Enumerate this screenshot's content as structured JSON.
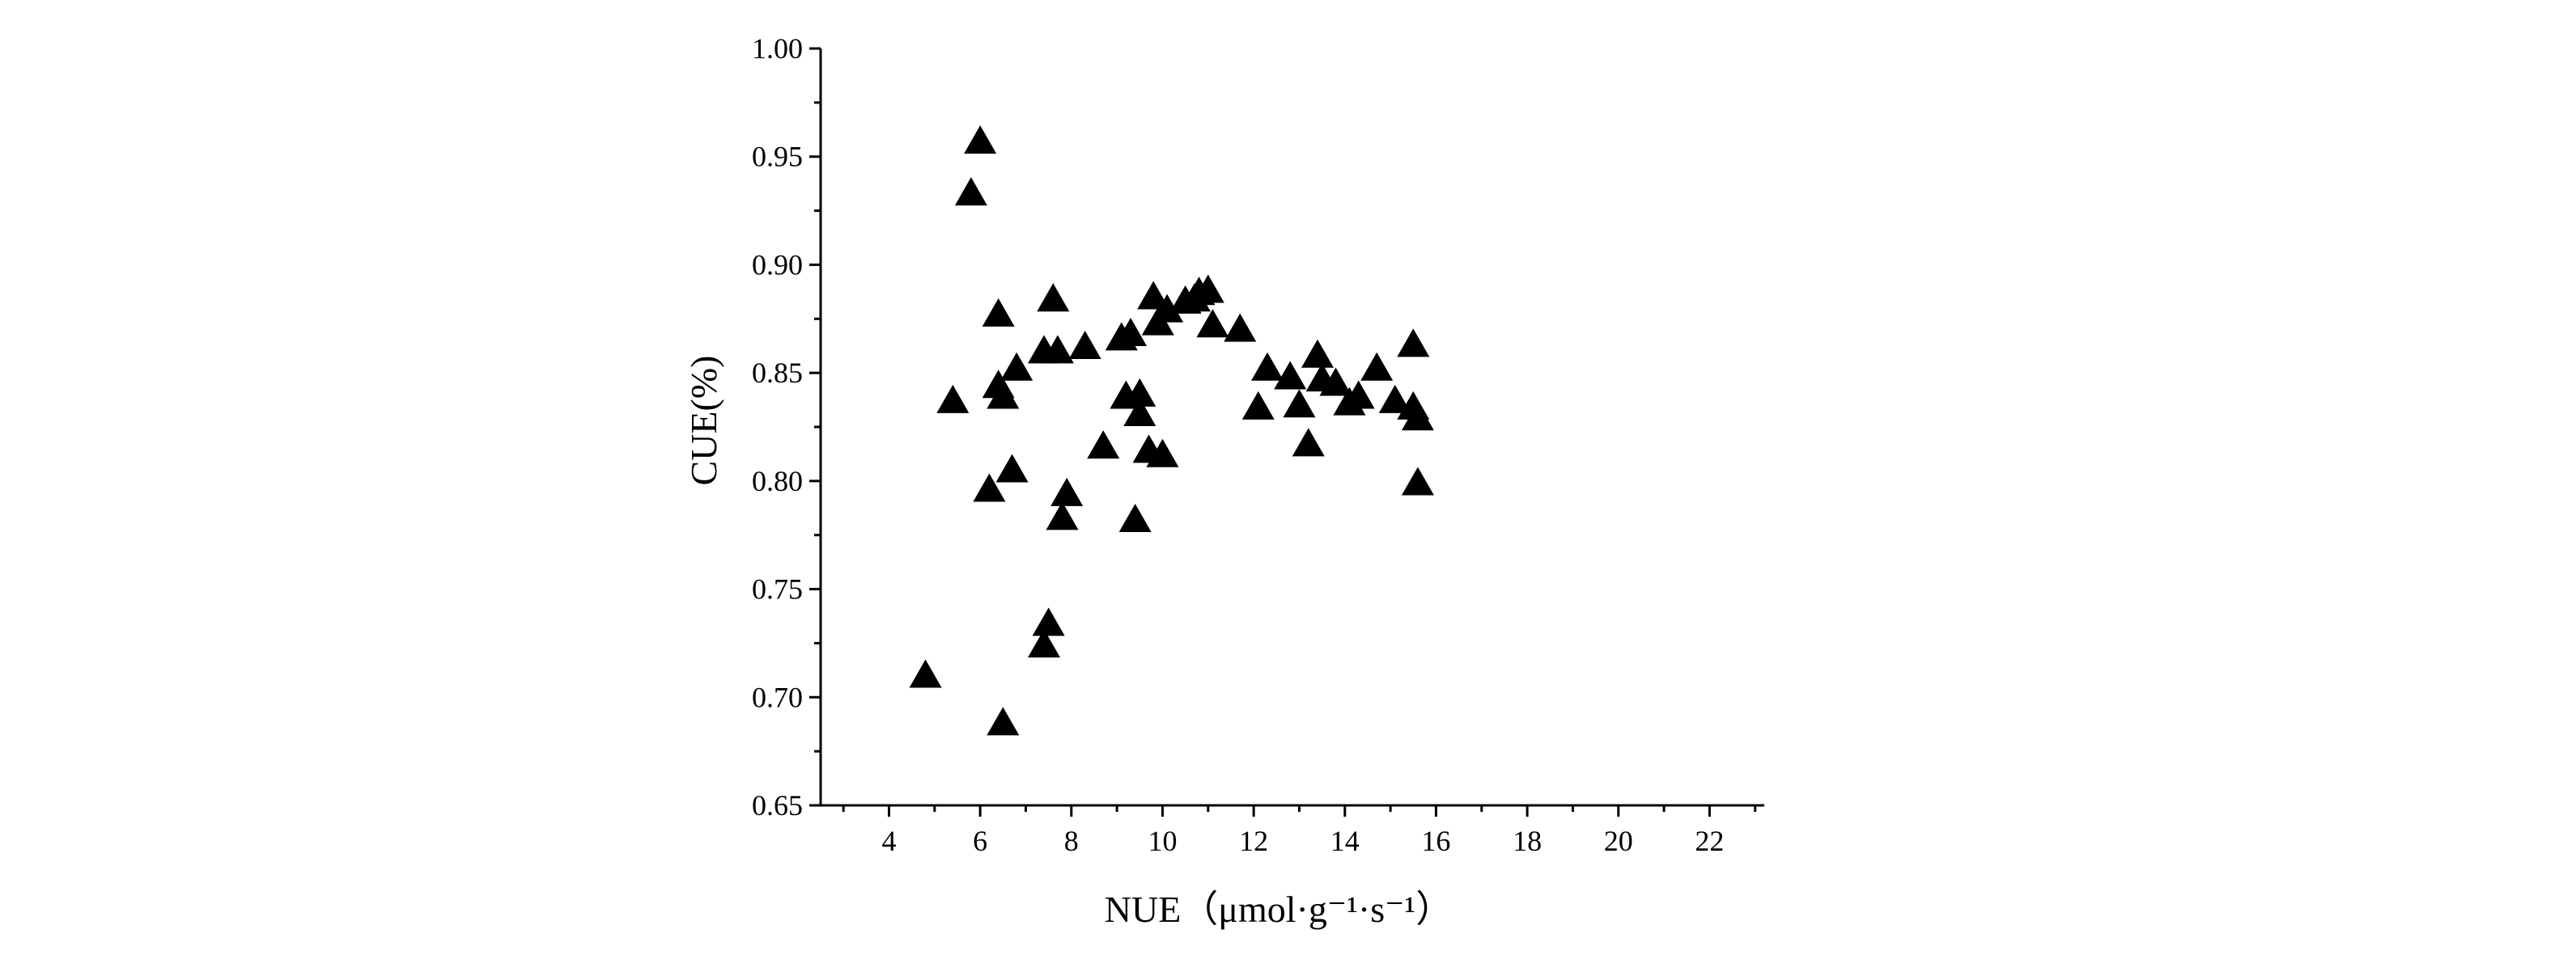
{
  "chart_data": {
    "type": "scatter",
    "xlabel": "NUE（μmol·g⁻¹·s⁻¹）",
    "ylabel": "CUE(%)",
    "xlim": [
      2.5,
      23.2
    ],
    "ylim": [
      0.65,
      1.0
    ],
    "x_ticks": [
      "4",
      "6",
      "8",
      "10",
      "12",
      "14",
      "16",
      "18",
      "20",
      "22"
    ],
    "y_ticks": [
      "0.65",
      "0.70",
      "0.75",
      "0.80",
      "0.85",
      "0.90",
      "0.95",
      "1.00"
    ],
    "marker": "triangle",
    "marker_color": "#000000",
    "grid": false,
    "points": [
      {
        "x": 4.8,
        "y": 0.71
      },
      {
        "x": 5.4,
        "y": 0.837
      },
      {
        "x": 5.8,
        "y": 0.933
      },
      {
        "x": 6.0,
        "y": 0.957
      },
      {
        "x": 6.2,
        "y": 0.796
      },
      {
        "x": 6.4,
        "y": 0.877
      },
      {
        "x": 6.4,
        "y": 0.844
      },
      {
        "x": 6.5,
        "y": 0.839
      },
      {
        "x": 6.5,
        "y": 0.688
      },
      {
        "x": 6.7,
        "y": 0.805
      },
      {
        "x": 6.8,
        "y": 0.852
      },
      {
        "x": 7.4,
        "y": 0.724
      },
      {
        "x": 7.4,
        "y": 0.86
      },
      {
        "x": 7.5,
        "y": 0.734
      },
      {
        "x": 7.6,
        "y": 0.884
      },
      {
        "x": 7.7,
        "y": 0.86
      },
      {
        "x": 7.8,
        "y": 0.783
      },
      {
        "x": 7.9,
        "y": 0.794
      },
      {
        "x": 8.3,
        "y": 0.862
      },
      {
        "x": 8.7,
        "y": 0.816
      },
      {
        "x": 9.1,
        "y": 0.866
      },
      {
        "x": 9.2,
        "y": 0.839
      },
      {
        "x": 9.3,
        "y": 0.868
      },
      {
        "x": 9.4,
        "y": 0.782
      },
      {
        "x": 9.5,
        "y": 0.84
      },
      {
        "x": 9.5,
        "y": 0.831
      },
      {
        "x": 9.7,
        "y": 0.814
      },
      {
        "x": 9.8,
        "y": 0.885
      },
      {
        "x": 9.9,
        "y": 0.873
      },
      {
        "x": 10.0,
        "y": 0.812
      },
      {
        "x": 10.1,
        "y": 0.879
      },
      {
        "x": 10.5,
        "y": 0.883
      },
      {
        "x": 10.7,
        "y": 0.884
      },
      {
        "x": 10.8,
        "y": 0.887
      },
      {
        "x": 11.0,
        "y": 0.888
      },
      {
        "x": 11.1,
        "y": 0.872
      },
      {
        "x": 11.7,
        "y": 0.87
      },
      {
        "x": 12.1,
        "y": 0.834
      },
      {
        "x": 12.3,
        "y": 0.852
      },
      {
        "x": 12.8,
        "y": 0.848
      },
      {
        "x": 13.0,
        "y": 0.835
      },
      {
        "x": 13.2,
        "y": 0.817
      },
      {
        "x": 13.4,
        "y": 0.858
      },
      {
        "x": 13.5,
        "y": 0.847
      },
      {
        "x": 13.8,
        "y": 0.845
      },
      {
        "x": 14.1,
        "y": 0.836
      },
      {
        "x": 14.3,
        "y": 0.839
      },
      {
        "x": 14.7,
        "y": 0.852
      },
      {
        "x": 15.1,
        "y": 0.837
      },
      {
        "x": 15.5,
        "y": 0.863
      },
      {
        "x": 15.5,
        "y": 0.834
      },
      {
        "x": 15.6,
        "y": 0.829
      },
      {
        "x": 15.6,
        "y": 0.799
      }
    ]
  }
}
